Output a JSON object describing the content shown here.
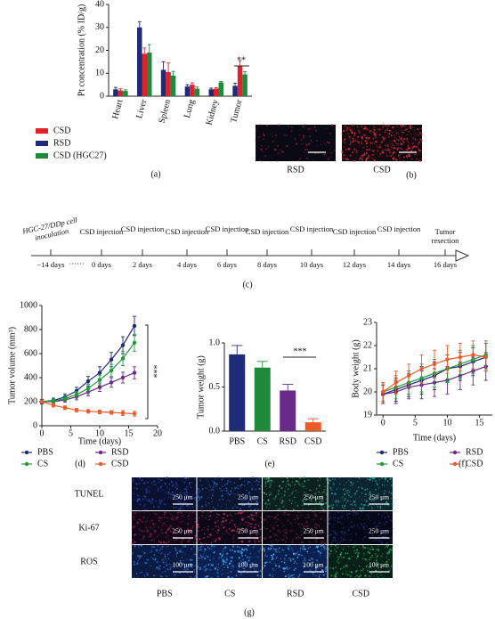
{
  "chart_data": [
    {
      "type": "grouped-bar",
      "ylabel": "Pt concentration (% ID/g)",
      "categories": [
        "Heart",
        "Liver",
        "Spleen",
        "Lung",
        "Kidney",
        "Tumor"
      ],
      "series": [
        {
          "name": "RSD",
          "color": "#1f2a78",
          "values": [
            3,
            30,
            11.5,
            4.2,
            3,
            4.5
          ],
          "errors": [
            0.8,
            2.5,
            3.5,
            0.8,
            0.5,
            1.2
          ]
        },
        {
          "name": "CSD",
          "color": "#e0202a",
          "values": [
            2.5,
            18.5,
            10.5,
            5,
            3.3,
            13
          ],
          "errors": [
            0.7,
            2.5,
            4,
            0.8,
            0.4,
            2.5
          ]
        },
        {
          "name": "CSD (HGC27)",
          "color": "#1f8a3a",
          "values": [
            2.3,
            19,
            9,
            3.3,
            6,
            9.5
          ],
          "errors": [
            0.5,
            3.5,
            1.8,
            0.7,
            0.4,
            1.2
          ]
        }
      ],
      "ylim": [
        0,
        40
      ],
      "yticks": [
        0,
        10,
        20,
        30,
        40
      ],
      "annotations": [
        "**"
      ],
      "caption": "(a)"
    },
    {
      "type": "line",
      "ylabel": "Tumor volume (mm³)",
      "xlabel": "Time (days)",
      "x": [
        0,
        2,
        4,
        6,
        8,
        10,
        12,
        14,
        16
      ],
      "series": [
        {
          "name": "PBS",
          "color": "#1f2a78",
          "values": [
            200,
            210,
            240,
            290,
            370,
            440,
            550,
            670,
            830
          ],
          "errors": [
            20,
            20,
            25,
            30,
            40,
            50,
            60,
            70,
            80
          ]
        },
        {
          "name": "RSD",
          "color": "#6a2a8a",
          "values": [
            200,
            200,
            215,
            240,
            280,
            320,
            360,
            400,
            440
          ],
          "errors": [
            15,
            15,
            20,
            25,
            30,
            35,
            40,
            45,
            50
          ]
        },
        {
          "name": "CS",
          "color": "#1f9a3a",
          "values": [
            200,
            205,
            225,
            260,
            310,
            380,
            460,
            560,
            690
          ],
          "errors": [
            15,
            15,
            20,
            25,
            35,
            40,
            50,
            60,
            70
          ]
        },
        {
          "name": "CSD",
          "color": "#f05a28",
          "values": [
            200,
            170,
            150,
            130,
            120,
            115,
            110,
            105,
            100
          ],
          "errors": [
            15,
            15,
            15,
            15,
            15,
            15,
            15,
            20,
            20
          ]
        }
      ],
      "xlim": [
        0,
        20
      ],
      "xticks": [
        0,
        5,
        10,
        15,
        20
      ],
      "ylim": [
        0,
        1000
      ],
      "yticks": [
        0,
        200,
        400,
        600,
        800,
        1000
      ],
      "annotations": [
        "***"
      ],
      "caption": "(d)"
    },
    {
      "type": "bar",
      "ylabel": "Tumor weight (g)",
      "categories": [
        "PBS",
        "CS",
        "RSD",
        "CSD"
      ],
      "values": [
        0.87,
        0.72,
        0.46,
        0.1
      ],
      "errors": [
        0.1,
        0.07,
        0.07,
        0.04
      ],
      "colors": [
        "#1f2a78",
        "#1f8a3a",
        "#6a2a8a",
        "#f05a28"
      ],
      "ylim": [
        0,
        1.0
      ],
      "yticks": [
        {
          "value": 0,
          "label": "0.0"
        },
        {
          "value": 0.5,
          "label": "0.5"
        },
        {
          "value": 1,
          "label": "1.0"
        }
      ],
      "annotations": [
        "***"
      ],
      "caption": "(e)"
    },
    {
      "type": "line",
      "ylabel": "Body weight (g)",
      "xlabel": "Time (days)",
      "x": [
        0,
        2,
        4,
        6,
        8,
        10,
        12,
        14,
        16
      ],
      "series": [
        {
          "name": "PBS",
          "color": "#1f2a78",
          "values": [
            19.9,
            20.1,
            20.3,
            20.5,
            20.7,
            21.0,
            21.1,
            21.3,
            21.5
          ],
          "errors": [
            0.4,
            0.5,
            0.5,
            0.6,
            0.6,
            0.6,
            0.6,
            0.6,
            0.6
          ]
        },
        {
          "name": "RSD",
          "color": "#6a2a8a",
          "values": [
            19.9,
            20.0,
            20.2,
            20.3,
            20.4,
            20.5,
            20.7,
            20.9,
            21.1
          ],
          "errors": [
            0.4,
            0.5,
            0.5,
            0.6,
            0.6,
            0.6,
            0.6,
            0.6,
            0.6
          ]
        },
        {
          "name": "CS",
          "color": "#1f9a3a",
          "values": [
            20.0,
            20.2,
            20.4,
            20.6,
            20.8,
            21.0,
            21.2,
            21.4,
            21.6
          ],
          "errors": [
            0.4,
            0.5,
            0.5,
            0.6,
            0.6,
            0.6,
            0.6,
            0.6,
            0.6
          ]
        },
        {
          "name": "CSD",
          "color": "#f05a28",
          "values": [
            20.0,
            20.4,
            20.7,
            21.0,
            21.2,
            21.4,
            21.5,
            21.6,
            21.5
          ],
          "errors": [
            0.4,
            0.5,
            0.5,
            0.6,
            0.6,
            0.6,
            0.6,
            0.6,
            0.6
          ]
        }
      ],
      "xlim": [
        -1,
        17
      ],
      "xticks": [
        0,
        5,
        10,
        15
      ],
      "ylim": [
        19,
        23
      ],
      "yticks": [
        19,
        20,
        21,
        22,
        23
      ],
      "caption": "(f)"
    }
  ],
  "timeline": {
    "events": [
      {
        "label": "HGC-27/DDp cell inoculation",
        "day": "−14 days"
      },
      {
        "label": "CSD injection",
        "day": "0 days"
      },
      {
        "label": "CSD injection",
        "day": "2 days"
      },
      {
        "label": "CSD injection",
        "day": "4 days"
      },
      {
        "label": "CSD injection",
        "day": "6 days"
      },
      {
        "label": "CSD injection",
        "day": "8 days"
      },
      {
        "label": "CSD injection",
        "day": "10 days"
      },
      {
        "label": "CSD injection",
        "day": "12 days"
      },
      {
        "label": "CSD injection",
        "day": "14 days"
      },
      {
        "label": "Tumor resection",
        "day": "16 days"
      }
    ],
    "ellipsis": "······",
    "caption": "(c)"
  },
  "images": {
    "b": {
      "labels": [
        "RSD",
        "CSD"
      ],
      "caption": "(b)"
    },
    "g": {
      "rows": [
        "TUNEL",
        "Ki-67",
        "ROS"
      ],
      "columns": [
        "PBS",
        "CS",
        "RSD",
        "CSD"
      ],
      "scale_labels": [
        [
          "250 μm",
          "250 μm",
          "250 μm",
          "250 μm"
        ],
        [
          "250 μm",
          "250 μm",
          "250 μm",
          "250 μm"
        ],
        [
          "100 μm",
          "100 μm",
          "100 μm",
          "100 μm"
        ]
      ],
      "caption": "(g)"
    }
  }
}
